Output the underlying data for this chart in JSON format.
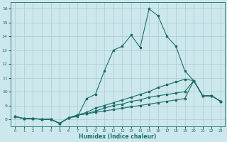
{
  "xlabel": "Humidex (Indice chaleur)",
  "bg_color": "#cce8ec",
  "grid_color": "#b0ced4",
  "line_color": "#1a6e6a",
  "xlim": [
    -0.5,
    23.5
  ],
  "ylim": [
    7.5,
    16.5
  ],
  "yticks": [
    8,
    9,
    10,
    11,
    12,
    13,
    14,
    15,
    16
  ],
  "xticks": [
    0,
    1,
    2,
    3,
    4,
    5,
    6,
    7,
    8,
    9,
    10,
    11,
    12,
    13,
    14,
    15,
    16,
    17,
    18,
    19,
    20,
    21,
    22,
    23
  ],
  "line1_x": [
    0,
    1,
    2,
    3,
    4,
    5,
    6,
    7,
    8,
    9,
    10,
    11,
    12,
    13,
    14,
    15,
    16,
    17,
    18,
    19,
    20,
    21,
    22,
    23
  ],
  "line1_y": [
    8.2,
    8.05,
    8.05,
    8.0,
    8.0,
    7.7,
    8.1,
    8.2,
    9.5,
    9.8,
    11.5,
    13.0,
    13.3,
    14.1,
    13.2,
    16.0,
    15.5,
    14.0,
    13.3,
    11.5,
    10.8,
    9.7,
    9.7,
    9.3
  ],
  "line2_x": [
    0,
    1,
    2,
    3,
    4,
    5,
    6,
    7,
    8,
    9,
    10,
    11,
    12,
    13,
    14,
    15,
    16,
    17,
    18,
    19,
    20,
    21,
    22,
    23
  ],
  "line2_y": [
    8.2,
    8.05,
    8.05,
    8.0,
    8.0,
    7.7,
    8.1,
    8.3,
    8.5,
    8.8,
    9.0,
    9.2,
    9.4,
    9.6,
    9.8,
    10.0,
    10.3,
    10.5,
    10.7,
    10.9,
    10.8,
    9.7,
    9.7,
    9.3
  ],
  "line3_x": [
    0,
    1,
    2,
    3,
    4,
    5,
    6,
    7,
    8,
    9,
    10,
    11,
    12,
    13,
    14,
    15,
    16,
    17,
    18,
    19,
    20,
    21,
    22,
    23
  ],
  "line3_y": [
    8.2,
    8.05,
    8.05,
    8.0,
    8.0,
    7.7,
    8.1,
    8.3,
    8.4,
    8.6,
    8.8,
    9.0,
    9.1,
    9.3,
    9.4,
    9.6,
    9.7,
    9.8,
    9.9,
    10.0,
    10.8,
    9.7,
    9.7,
    9.3
  ],
  "line4_x": [
    0,
    1,
    2,
    3,
    4,
    5,
    6,
    7,
    8,
    9,
    10,
    11,
    12,
    13,
    14,
    15,
    16,
    17,
    18,
    19,
    20,
    21,
    22,
    23
  ],
  "line4_y": [
    8.2,
    8.05,
    8.05,
    8.0,
    8.0,
    7.7,
    8.1,
    8.3,
    8.4,
    8.5,
    8.6,
    8.7,
    8.8,
    8.9,
    9.0,
    9.1,
    9.2,
    9.3,
    9.4,
    9.5,
    10.8,
    9.7,
    9.7,
    9.3
  ]
}
